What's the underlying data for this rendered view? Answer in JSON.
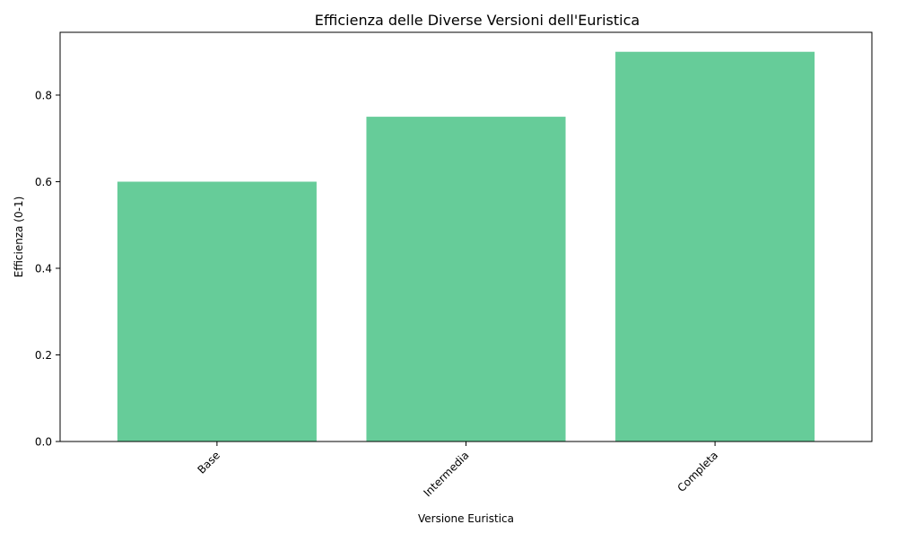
{
  "chart_data": {
    "type": "bar",
    "title": "Efficienza delle Diverse Versioni dell'Euristica",
    "xlabel": "Versione Euristica",
    "ylabel": "Efficienza (0-1)",
    "categories": [
      "Base",
      "Intermedia",
      "Completa"
    ],
    "values": [
      0.6,
      0.75,
      0.9
    ],
    "ylim": [
      0,
      0.945
    ],
    "yticks": [
      0.0,
      0.2,
      0.4,
      0.6,
      0.8
    ],
    "ytick_labels": [
      "0.0",
      "0.2",
      "0.4",
      "0.6",
      "0.8"
    ],
    "xtick_rotation": 45,
    "bar_color": "#66cc99",
    "grid": false,
    "legend": false
  }
}
